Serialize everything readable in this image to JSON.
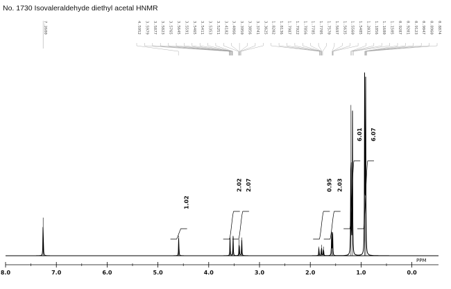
{
  "title": "No. 1730 Isovaleraldehyde diethyl acetal HNMR",
  "chart_data": {
    "type": "line",
    "title": "No. 1730 Isovaleraldehyde diethyl acetal HNMR",
    "xlabel": "PPM",
    "ylabel": "",
    "xlim": [
      8.0,
      -0.5
    ],
    "x_reversed": true,
    "x_ticks": [
      "8.0",
      "7.0",
      "6.0",
      "5.0",
      "4.0",
      "3.0",
      "2.0",
      "1.0",
      "0.0"
    ],
    "peaks": [
      {
        "ppm": 7.26,
        "height": 0.21
      },
      {
        "ppm": 4.59,
        "height": 0.11
      },
      {
        "ppm": 3.58,
        "height": 0.1
      },
      {
        "ppm": 3.52,
        "height": 0.11
      },
      {
        "ppm": 3.4,
        "height": 0.09
      },
      {
        "ppm": 3.35,
        "height": 0.1
      },
      {
        "ppm": 1.83,
        "height": 0.05
      },
      {
        "ppm": 1.78,
        "height": 0.06
      },
      {
        "ppm": 1.74,
        "height": 0.05
      },
      {
        "ppm": 1.58,
        "height": 0.13
      },
      {
        "ppm": 1.56,
        "height": 0.13
      },
      {
        "ppm": 1.2,
        "height": 0.83
      },
      {
        "ppm": 1.17,
        "height": 0.8
      },
      {
        "ppm": 0.93,
        "height": 0.98
      },
      {
        "ppm": 0.91,
        "height": 0.95
      }
    ],
    "peak_labels": [
      "7.2600",
      "4.5952",
      "3.5979",
      "3.5877",
      "3.5823",
      "3.5765",
      "3.5645",
      "3.5591",
      "3.5465",
      "3.5411",
      "3.5353",
      "3.5251",
      "3.4182",
      "3.4066",
      "3.3950",
      "3.3856",
      "3.3741",
      "3.3625",
      "1.8202",
      "1.8136",
      "1.7987",
      "1.7922",
      "1.7856",
      "1.7785",
      "1.7705",
      "1.7570",
      "1.5697",
      "1.5635",
      "1.5560",
      "1.5485",
      "1.2032",
      "1.1856",
      "1.1680",
      "1.1505",
      "0.9287",
      "0.9201",
      "0.9123",
      "0.9047",
      "0.8960",
      "0.8874"
    ],
    "integrals": [
      {
        "ppm": 4.59,
        "label": "1.02"
      },
      {
        "ppm": 3.55,
        "label": "2.02"
      },
      {
        "ppm": 3.37,
        "label": "2.07"
      },
      {
        "ppm": 1.78,
        "label": "0.95"
      },
      {
        "ppm": 1.57,
        "label": "2.03"
      },
      {
        "ppm": 1.18,
        "label": "6.01"
      },
      {
        "ppm": 0.91,
        "label": "6.07"
      }
    ]
  }
}
